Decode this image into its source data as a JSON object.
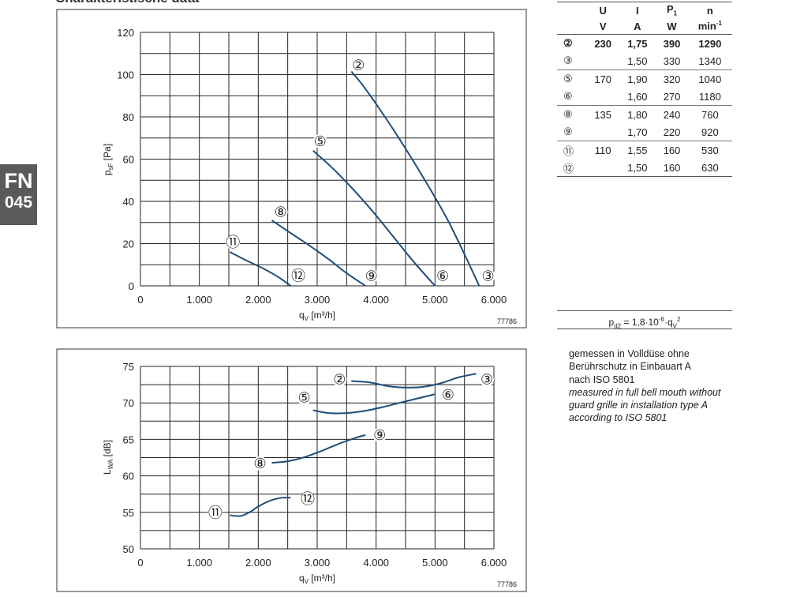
{
  "page": {
    "heading": "Charakteristische data",
    "tab_line1": "FN",
    "tab_line2": "045"
  },
  "pressure_chart": {
    "drawing_no": "77786",
    "point_markers": {
      "2": "②",
      "3": "③",
      "5": "⑤",
      "6": "⑥",
      "8": "⑧",
      "9": "⑨",
      "11": "⑪",
      "12": "⑫"
    }
  },
  "sound_chart": {
    "drawing_no": "77786"
  },
  "spec_table": {
    "headers": [
      {
        "sym": "U",
        "unit": "V"
      },
      {
        "sym": "I",
        "unit": "A"
      },
      {
        "sym": "P",
        "sub": "1",
        "unit": "W"
      },
      {
        "sym": "n",
        "unit": "min",
        "sup": "-1"
      }
    ],
    "rows": [
      {
        "symbol": "②",
        "u": "230",
        "i": "1,75",
        "p": "390",
        "n": "1290",
        "bold": true,
        "group_start": true
      },
      {
        "symbol": "③",
        "u": "",
        "i": "1,50",
        "p": "330",
        "n": "1340",
        "bold": false,
        "group_start": false
      },
      {
        "symbol": "⑤",
        "u": "170",
        "i": "1,90",
        "p": "320",
        "n": "1040",
        "bold": false,
        "group_start": true
      },
      {
        "symbol": "⑥",
        "u": "",
        "i": "1,60",
        "p": "270",
        "n": "1180",
        "bold": false,
        "group_start": false
      },
      {
        "symbol": "⑧",
        "u": "135",
        "i": "1,80",
        "p": "240",
        "n": "760",
        "bold": false,
        "group_start": true
      },
      {
        "symbol": "⑨",
        "u": "",
        "i": "1,70",
        "p": "220",
        "n": "920",
        "bold": false,
        "group_start": false
      },
      {
        "symbol": "⑪",
        "u": "110",
        "i": "1,55",
        "p": "160",
        "n": "530",
        "bold": false,
        "group_start": true
      },
      {
        "symbol": "⑫",
        "u": "",
        "i": "1,50",
        "p": "160",
        "n": "630",
        "bold": false,
        "group_start": false
      }
    ]
  },
  "formula": {
    "lhs": "p",
    "lhs_sub": "d2",
    "middle": " = 1,8·10",
    "exp": "-6",
    "rhs": "·q",
    "rhs_sub": "V",
    "rhs_sup": "2"
  },
  "notes": {
    "de": [
      "gemessen in Volldüse ohne",
      "Berührschutz in Einbauart A",
      "nach ISO 5801"
    ],
    "en": [
      "measured in full bell mouth without",
      "guard grille in installation type A",
      "according to ISO 5801"
    ]
  },
  "chart_data": [
    {
      "type": "line",
      "xlabel": "q",
      "xlabel_sub": "V",
      "xlabel_unit": " [m³/h]",
      "ylabel": "p",
      "ylabel_sub": "sF",
      "ylabel_unit": " [Pa]",
      "xlim": [
        0,
        6000
      ],
      "ylim": [
        0,
        120
      ],
      "x_ticks": [
        0,
        1000,
        2000,
        3000,
        4000,
        5000,
        6000
      ],
      "x_tick_labels": [
        "0",
        "1.000",
        "2.000",
        "3.000",
        "4.000",
        "5.000",
        "6.000"
      ],
      "y_ticks": [
        0,
        20,
        40,
        60,
        80,
        100,
        120
      ],
      "y_tick_labels": [
        "0",
        "20",
        "40",
        "60",
        "80",
        "100",
        "120"
      ],
      "x_grid_step": 500,
      "y_grid_step": 10,
      "grid": true,
      "series": [
        {
          "name": "② – ③",
          "x": [
            3580,
            3800,
            4150,
            4500,
            4850,
            5200,
            5500,
            5750
          ],
          "y": [
            101.5,
            94,
            80,
            65,
            49,
            32,
            15,
            0
          ]
        },
        {
          "name": "⑤ – ⑥",
          "x": [
            2930,
            3250,
            3600,
            3950,
            4300,
            4650,
            5000
          ],
          "y": [
            64,
            56,
            46,
            35,
            23,
            11,
            0
          ]
        },
        {
          "name": "⑧ – ⑨",
          "x": [
            2230,
            2550,
            2900,
            3200,
            3500,
            3820
          ],
          "y": [
            31,
            25,
            18.5,
            12.5,
            6,
            0
          ]
        },
        {
          "name": "⑪ – ⑫",
          "x": [
            1520,
            1800,
            2100,
            2350,
            2550
          ],
          "y": [
            16,
            12,
            8,
            4,
            0
          ]
        }
      ],
      "annotations": [
        {
          "label": "②",
          "x": 3700,
          "y": 104.5
        },
        {
          "label": "⑤",
          "x": 3050,
          "y": 68.5
        },
        {
          "label": "⑧",
          "x": 2380,
          "y": 35
        },
        {
          "label": "⑪",
          "x": 1570,
          "y": 20.5
        },
        {
          "label": "⑫",
          "x": 2680,
          "y": 4.7
        },
        {
          "label": "⑨",
          "x": 3920,
          "y": 4.7
        },
        {
          "label": "⑥",
          "x": 5130,
          "y": 4.7
        },
        {
          "label": "③",
          "x": 5900,
          "y": 4.7
        }
      ]
    },
    {
      "type": "line",
      "xlabel": "q",
      "xlabel_sub": "V",
      "xlabel_unit": " [m³/h]",
      "ylabel": "L",
      "ylabel_sub": "WA",
      "ylabel_unit": " [dB]",
      "xlim": [
        0,
        6000
      ],
      "ylim": [
        50,
        75
      ],
      "x_ticks": [
        0,
        1000,
        2000,
        3000,
        4000,
        5000,
        6000
      ],
      "x_tick_labels": [
        "0",
        "1.000",
        "2.000",
        "3.000",
        "4.000",
        "5.000",
        "6.000"
      ],
      "y_ticks": [
        50,
        55,
        60,
        65,
        70,
        75
      ],
      "y_tick_labels": [
        "50",
        "55",
        "60",
        "65",
        "70",
        "75"
      ],
      "x_grid_step": 500,
      "y_grid_step": 2.5,
      "grid": true,
      "series": [
        {
          "name": "② – ③",
          "x": [
            3580,
            3900,
            4200,
            4500,
            4800,
            5100,
            5400,
            5700
          ],
          "y": [
            73,
            72.8,
            72.3,
            72.1,
            72.2,
            72.7,
            73.5,
            74
          ]
        },
        {
          "name": "⑤ – ⑥",
          "x": [
            2930,
            3200,
            3500,
            3800,
            4100,
            4400,
            4700,
            5000
          ],
          "y": [
            69,
            68.6,
            68.6,
            68.9,
            69.4,
            70,
            70.6,
            71.2
          ]
        },
        {
          "name": "⑧ – ⑨",
          "x": [
            2230,
            2500,
            2800,
            3100,
            3400,
            3650,
            3820
          ],
          "y": [
            61.8,
            62,
            62.6,
            63.5,
            64.5,
            65.2,
            65.6
          ]
        },
        {
          "name": "⑪ – ⑫",
          "x": [
            1520,
            1700,
            1850,
            2000,
            2200,
            2400,
            2550
          ],
          "y": [
            54.6,
            54.5,
            55,
            55.8,
            56.6,
            57,
            57
          ]
        }
      ],
      "annotations": [
        {
          "label": "②",
          "x": 3380,
          "y": 73.2
        },
        {
          "label": "③",
          "x": 5880,
          "y": 73.2
        },
        {
          "label": "⑤",
          "x": 2780,
          "y": 70.7
        },
        {
          "label": "⑥",
          "x": 5220,
          "y": 71.1
        },
        {
          "label": "⑧",
          "x": 2030,
          "y": 61.7
        },
        {
          "label": "⑨",
          "x": 4060,
          "y": 65.6
        },
        {
          "label": "⑪",
          "x": 1270,
          "y": 54.9
        },
        {
          "label": "⑫",
          "x": 2840,
          "y": 56.8
        }
      ]
    }
  ]
}
